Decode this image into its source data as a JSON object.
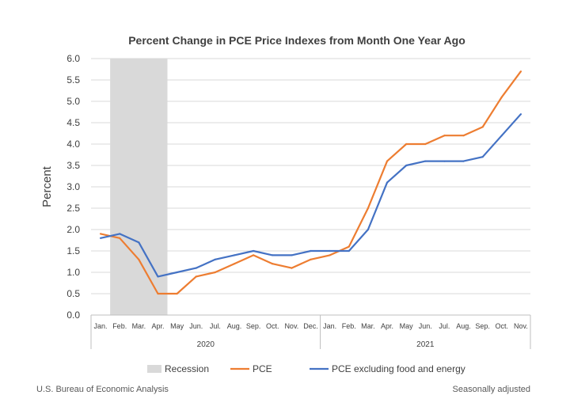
{
  "chart_data": {
    "type": "line",
    "title": "Percent Change in PCE Price Indexes from Month One Year Ago",
    "ylabel": "Percent",
    "xlabel": "",
    "ylim": [
      0,
      6
    ],
    "yticks": [
      "0.0",
      "0.5",
      "1.0",
      "1.5",
      "2.0",
      "2.5",
      "3.0",
      "3.5",
      "4.0",
      "4.5",
      "5.0",
      "5.5",
      "6.0"
    ],
    "grid": true,
    "categories": [
      "Jan.",
      "Feb.",
      "Mar.",
      "Apr.",
      "May",
      "Jun.",
      "Jul.",
      "Aug.",
      "Sep.",
      "Oct.",
      "Nov.",
      "Dec.",
      "Jan.",
      "Feb.",
      "Mar.",
      "Apr.",
      "May",
      "Jun.",
      "Jul.",
      "Aug.",
      "Sep.",
      "Oct.",
      "Nov."
    ],
    "year_groups": [
      {
        "label": "2020",
        "count": 12
      },
      {
        "label": "2021",
        "count": 11
      }
    ],
    "shaded_region": {
      "name": "Recession",
      "from_index": 1,
      "to_index": 3,
      "color": "#d9d9d9"
    },
    "series": [
      {
        "name": "PCE",
        "color": "#ed7d31",
        "values": [
          1.9,
          1.8,
          1.3,
          0.5,
          0.5,
          0.9,
          1.0,
          1.2,
          1.4,
          1.2,
          1.1,
          1.3,
          1.4,
          1.6,
          2.5,
          3.6,
          4.0,
          4.0,
          4.2,
          4.2,
          4.4,
          5.1,
          5.7
        ]
      },
      {
        "name": "PCE excluding food and energy",
        "color": "#4472c4",
        "values": [
          1.8,
          1.9,
          1.7,
          0.9,
          1.0,
          1.1,
          1.3,
          1.4,
          1.5,
          1.4,
          1.4,
          1.5,
          1.5,
          1.5,
          2.0,
          3.1,
          3.5,
          3.6,
          3.6,
          3.6,
          3.7,
          4.2,
          4.7
        ]
      }
    ],
    "legend": [
      {
        "label": "Recession",
        "kind": "patch",
        "color": "#d9d9d9"
      },
      {
        "label": "PCE",
        "kind": "line",
        "color": "#ed7d31"
      },
      {
        "label": "PCE excluding food and energy",
        "kind": "line",
        "color": "#4472c4"
      }
    ],
    "legend_position": "bottom"
  },
  "footer": {
    "source": "U.S. Bureau of Economic Analysis",
    "note": "Seasonally adjusted"
  }
}
